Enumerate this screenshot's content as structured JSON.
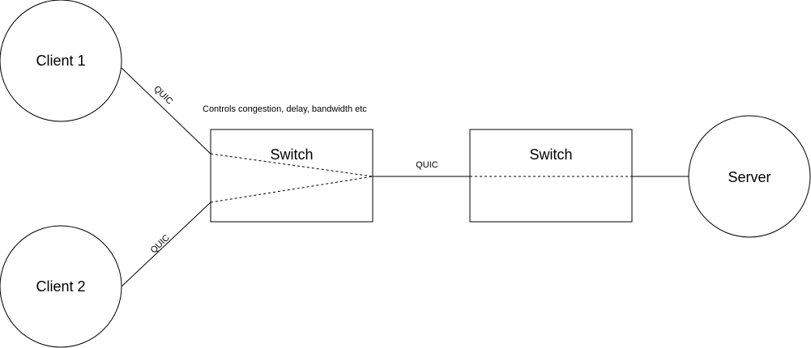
{
  "nodes": {
    "client1": "Client 1",
    "client2": "Client 2",
    "switch1": "Switch",
    "switch2": "Switch",
    "server": "Server"
  },
  "edges": {
    "client1_link": "QUIC",
    "client2_link": "QUIC",
    "switch_link": "QUIC"
  },
  "annotations": {
    "switch1_note": "Controls congestion, delay, bandwidth etc"
  }
}
